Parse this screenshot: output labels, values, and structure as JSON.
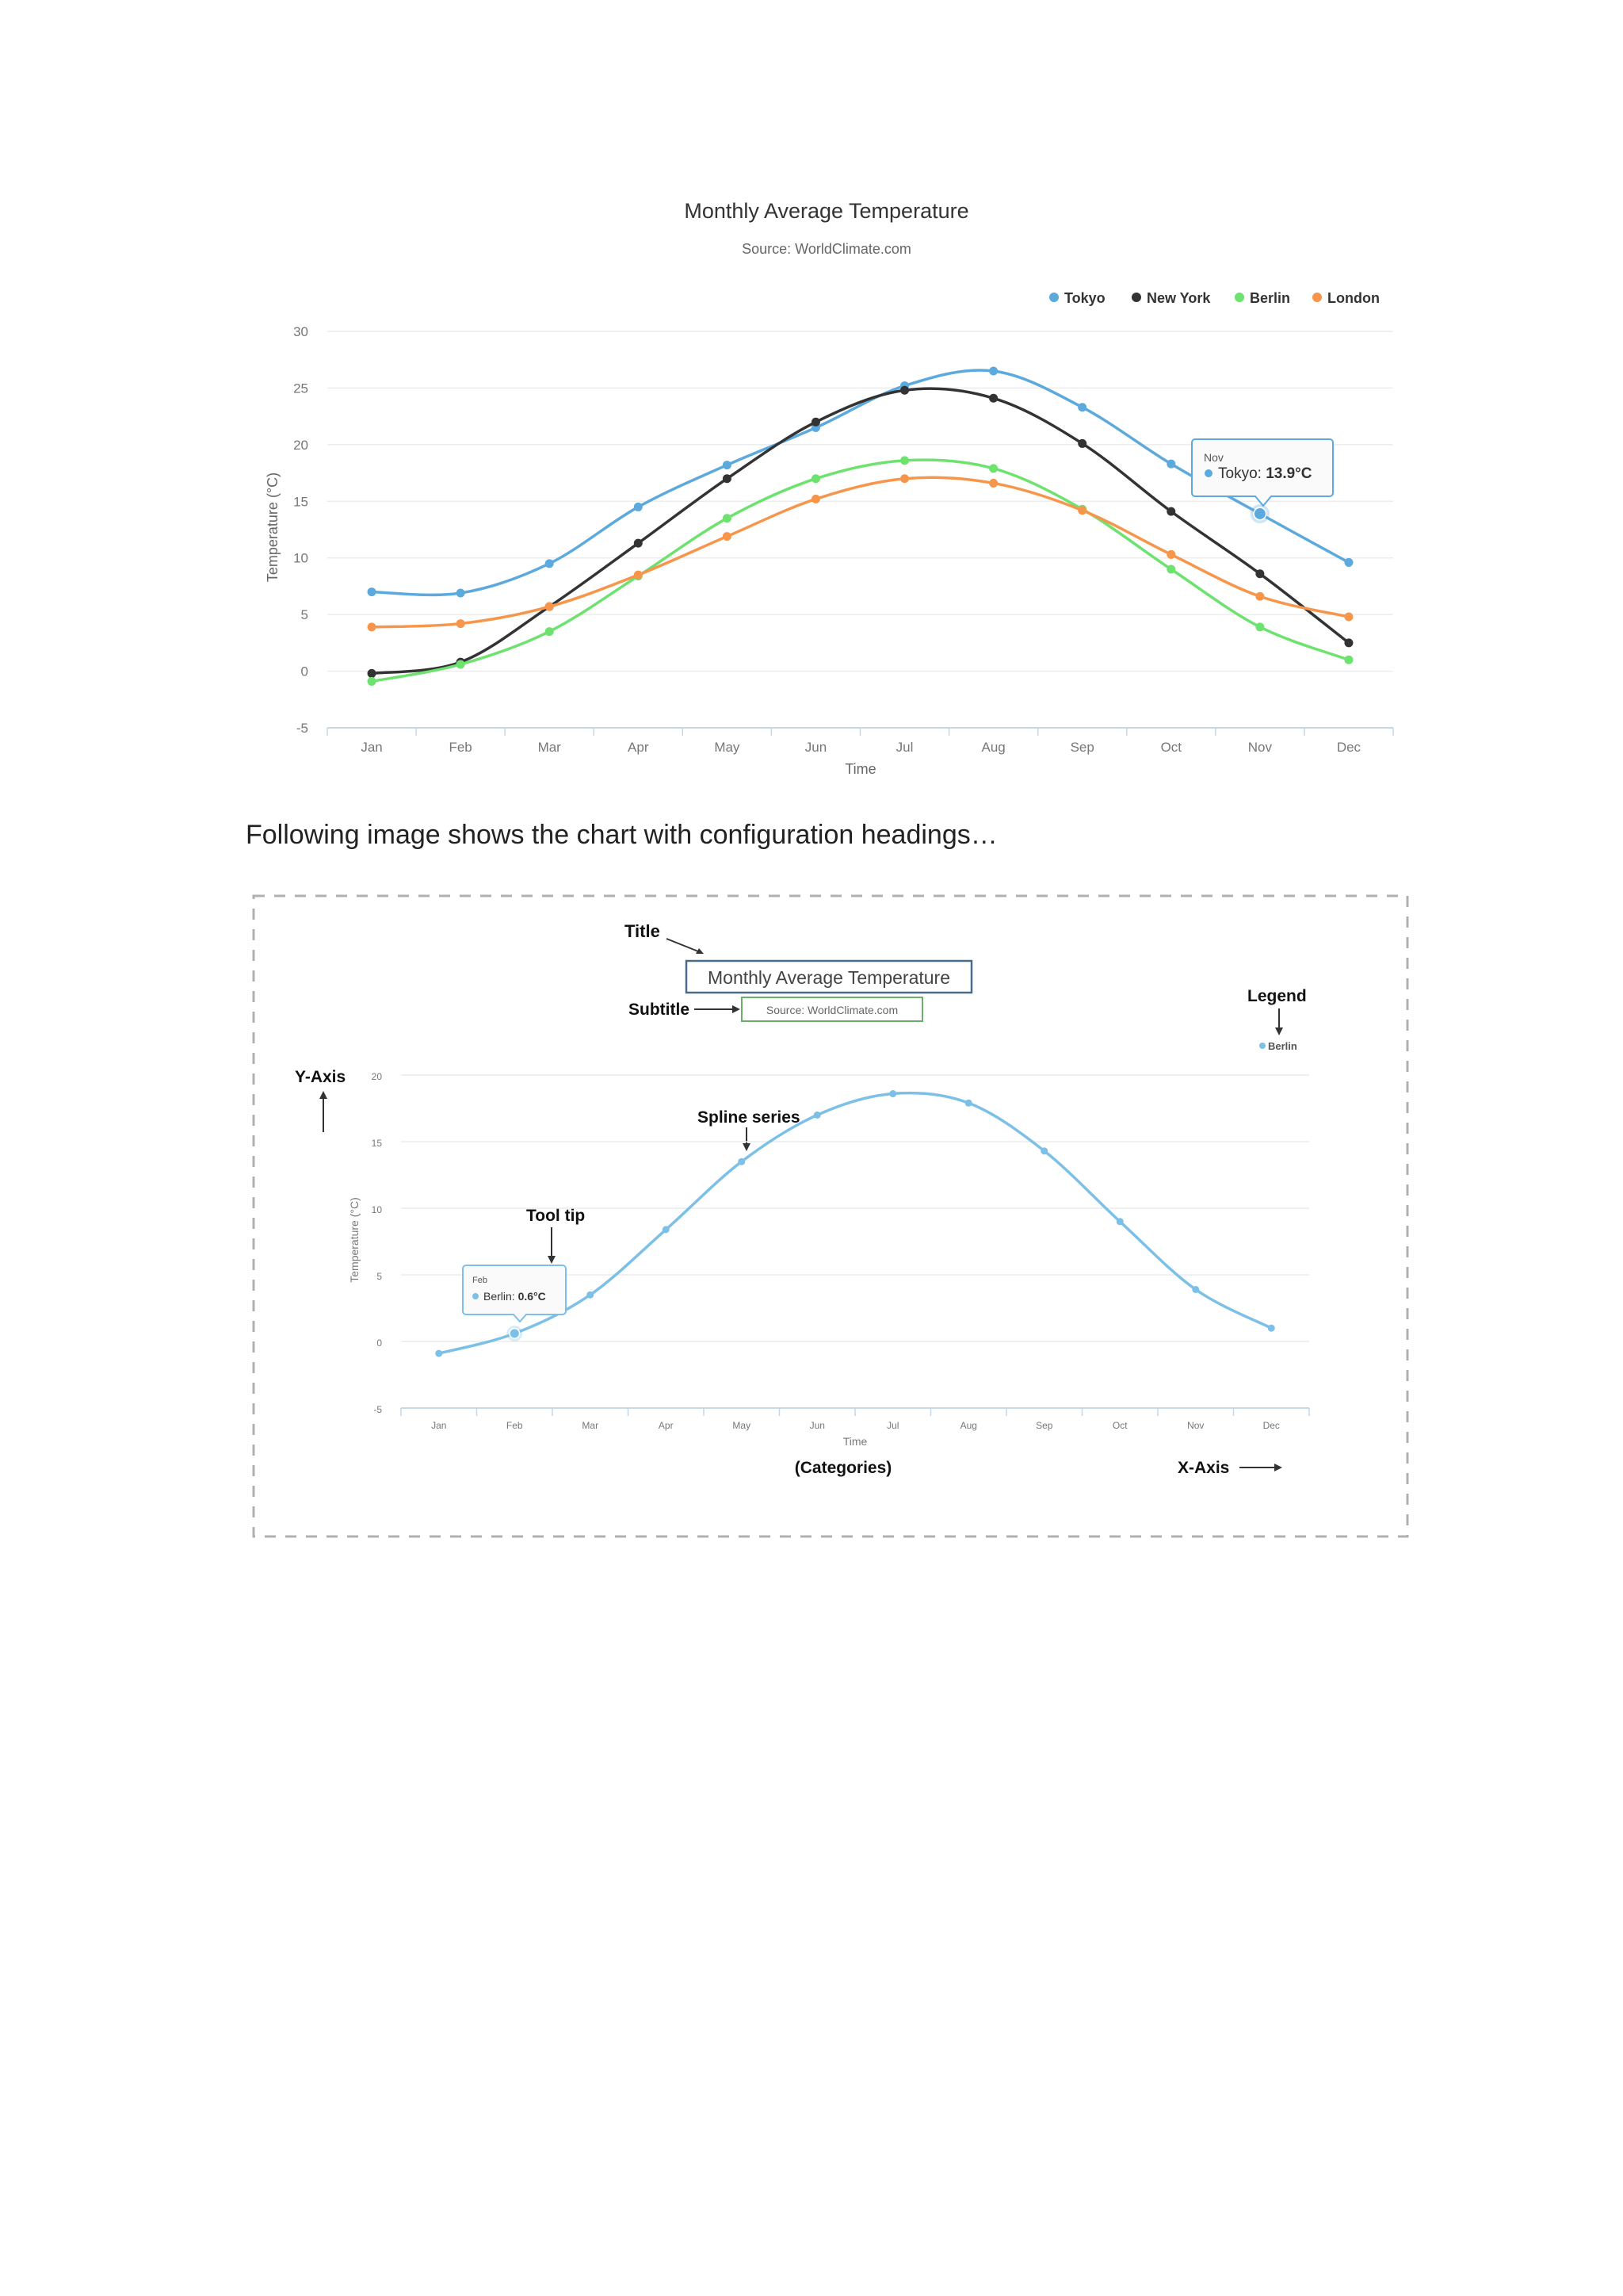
{
  "caption": "Following image shows the chart with configuration headings…",
  "chart_data": [
    {
      "type": "line",
      "title": "Monthly Average Temperature",
      "subtitle": "Source: WorldClimate.com",
      "xlabel": "Time",
      "ylabel": "Temperature (°C)",
      "categories": [
        "Jan",
        "Feb",
        "Mar",
        "Apr",
        "May",
        "Jun",
        "Jul",
        "Aug",
        "Sep",
        "Oct",
        "Nov",
        "Dec"
      ],
      "ylim": [
        -5,
        30
      ],
      "yticks": [
        -5,
        0,
        5,
        10,
        15,
        20,
        25,
        30
      ],
      "grid": true,
      "legend_position": "top-right",
      "series": [
        {
          "name": "Tokyo",
          "color": "#5ba9dd",
          "values": [
            7.0,
            6.9,
            9.5,
            14.5,
            18.2,
            21.5,
            25.2,
            26.5,
            23.3,
            18.3,
            13.9,
            9.6
          ]
        },
        {
          "name": "New York",
          "color": "#333333",
          "values": [
            -0.2,
            0.8,
            5.7,
            11.3,
            17.0,
            22.0,
            24.8,
            24.1,
            20.1,
            14.1,
            8.6,
            2.5
          ]
        },
        {
          "name": "Berlin",
          "color": "#6ee26e",
          "values": [
            -0.9,
            0.6,
            3.5,
            8.4,
            13.5,
            17.0,
            18.6,
            17.9,
            14.3,
            9.0,
            3.9,
            1.0
          ]
        },
        {
          "name": "London",
          "color": "#f7964a",
          "values": [
            3.9,
            4.2,
            5.7,
            8.5,
            11.9,
            15.2,
            17.0,
            16.6,
            14.2,
            10.3,
            6.6,
            4.8
          ]
        }
      ],
      "tooltip": {
        "category": "Nov",
        "series": "Tokyo",
        "label": "Tokyo: ",
        "value_text": "13.9°C",
        "month_label": "Nov"
      }
    },
    {
      "type": "line",
      "title": "Monthly Average Temperature",
      "subtitle": "Source: WorldClimate.com",
      "xlabel": "Time",
      "ylabel": "Temperature (°C)",
      "categories": [
        "Jan",
        "Feb",
        "Mar",
        "Apr",
        "May",
        "Jun",
        "Jul",
        "Aug",
        "Sep",
        "Oct",
        "Nov",
        "Dec"
      ],
      "ylim": [
        -5,
        20
      ],
      "yticks": [
        -5,
        0,
        5,
        10,
        15,
        20
      ],
      "grid": true,
      "legend_position": "top-right",
      "series": [
        {
          "name": "Berlin",
          "color": "#7cc0e8",
          "values": [
            -0.9,
            0.6,
            3.5,
            8.4,
            13.5,
            17.0,
            18.6,
            17.9,
            14.3,
            9.0,
            3.9,
            1.0
          ]
        }
      ],
      "tooltip": {
        "category": "Feb",
        "series": "Berlin",
        "label": "Berlin: ",
        "value_text": "0.6°C",
        "month_label": "Feb"
      },
      "annotations": {
        "title": "Title",
        "subtitle": "Subtitle",
        "legend": "Legend",
        "y_axis": "Y-Axis",
        "spline": "Spline series",
        "tooltip": "Tool tip",
        "categories": "(Categories)",
        "x_axis": "X-Axis"
      }
    }
  ]
}
